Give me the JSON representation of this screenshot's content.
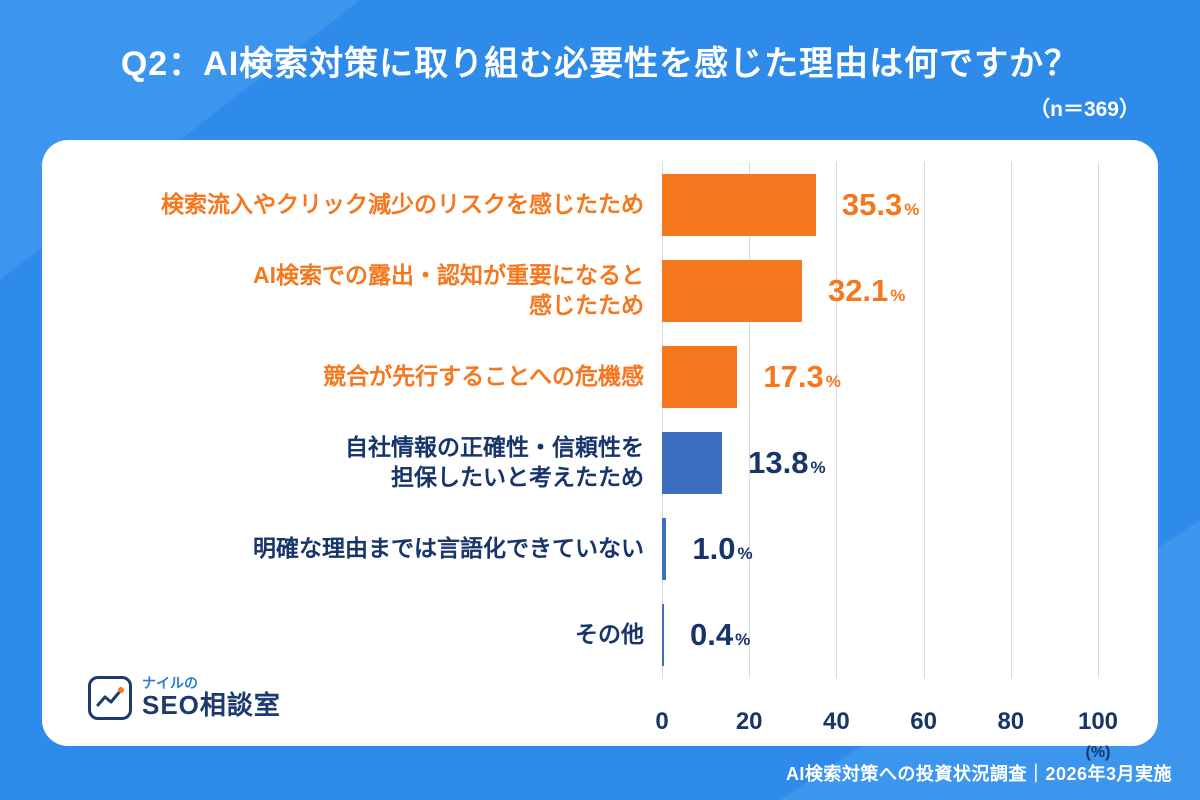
{
  "header": {
    "title": "Q2：AI検索対策に取り組む必要性を感じた理由は何ですか？",
    "sample_size": "（n＝369）"
  },
  "footer": {
    "source": "AI検索対策への投資状況調査｜2026年3月実施"
  },
  "logo": {
    "top": "ナイルの",
    "name": "SEO相談室"
  },
  "colors": {
    "background_blue": "#2E8BE9",
    "accent_orange": "#F5771E",
    "bar_blue": "#3D6FC1",
    "navy_text": "#17356B",
    "gridline": "#D7DCE3"
  },
  "chart_data": {
    "type": "bar",
    "orientation": "horizontal",
    "title": "Q2：AI検索対策に取り組む必要性を感じた理由は何ですか？",
    "sample_size": 369,
    "unit": "%",
    "xlim": [
      0,
      100
    ],
    "x_ticks": [
      0,
      20,
      40,
      60,
      80,
      100
    ],
    "x_axis_unit_label": "(%)",
    "grid": true,
    "legend": "none",
    "categories": [
      "検索流入やクリック減少のリスクを感じたため",
      "AI検索での露出・認知が重要になると感じたため",
      "競合が先行することへの危機感",
      "自社情報の正確性・信頼性を担保したいと考えたため",
      "明確な理由までは言語化できていない",
      "その他"
    ],
    "values": [
      35.3,
      32.1,
      17.3,
      13.8,
      1.0,
      0.4
    ],
    "rows": [
      {
        "label": "検索流入やクリック減少のリスクを感じたため",
        "value": 35.3,
        "display": "35.3",
        "bar_color": "#F5771E",
        "label_color": "#F5771E",
        "value_color": "#F5771E"
      },
      {
        "label": "AI検索での露出・認知が重要になると\n感じたため",
        "value": 32.1,
        "display": "32.1",
        "bar_color": "#F5771E",
        "label_color": "#F5771E",
        "value_color": "#F5771E"
      },
      {
        "label": "競合が先行することへの危機感",
        "value": 17.3,
        "display": "17.3",
        "bar_color": "#F5771E",
        "label_color": "#F5771E",
        "value_color": "#F5771E"
      },
      {
        "label": "自社情報の正確性・信頼性を\n担保したいと考えたため",
        "value": 13.8,
        "display": "13.8",
        "bar_color": "#3D6FC1",
        "label_color": "#17356B",
        "value_color": "#17356B"
      },
      {
        "label": "明確な理由までは言語化できていない",
        "value": 1.0,
        "display": "1.0",
        "bar_color": "#3D6FC1",
        "label_color": "#17356B",
        "value_color": "#17356B"
      },
      {
        "label": "その他",
        "value": 0.4,
        "display": "0.4",
        "bar_color": "#3D6FC1",
        "label_color": "#17356B",
        "value_color": "#17356B"
      }
    ]
  }
}
